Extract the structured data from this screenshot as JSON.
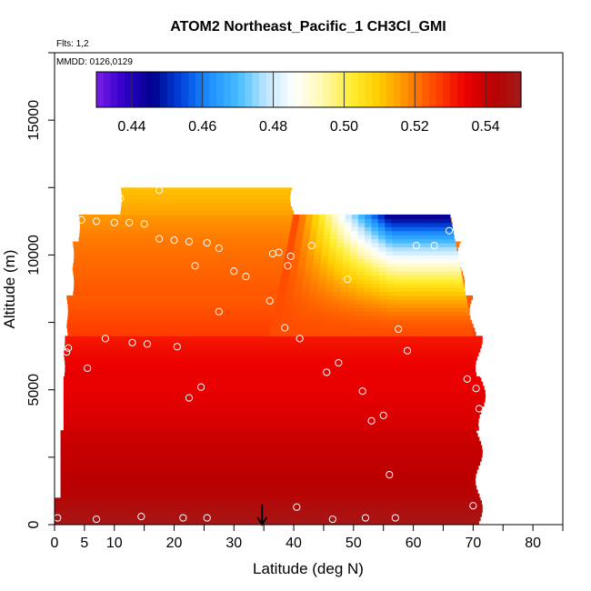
{
  "chart_data": {
    "type": "heatmap",
    "title": "ATOM2 Northeast_Pacific_1 CH3Cl_GMI",
    "annotations": [
      "Flts: 1,2",
      "MMDD: 0126,0129"
    ],
    "xlabel": "Latitude (deg N)",
    "ylabel": "Altitude (m)",
    "xlim": [
      0,
      85
    ],
    "ylim": [
      0,
      17500
    ],
    "x_ticks": [
      0,
      5,
      10,
      20,
      30,
      40,
      50,
      60,
      70,
      80
    ],
    "y_ticks": [
      0,
      5000,
      10000,
      15000
    ],
    "colorbar": {
      "min": 0.43,
      "max": 0.55,
      "ticks": [
        0.44,
        0.46,
        0.48,
        0.5,
        0.52,
        0.54
      ],
      "tick_labels": [
        "0.44",
        "0.46",
        "0.48",
        "0.50",
        "0.52",
        "0.54"
      ],
      "colors": [
        "#7c1ce6",
        "#2d00c8",
        "#00008c",
        "#0044dd",
        "#1e90ff",
        "#44bbff",
        "#bfe6ff",
        "#ffffff",
        "#fff8b0",
        "#ffee33",
        "#ffcc00",
        "#ff8a00",
        "#ff4400",
        "#ee0000",
        "#bb0000",
        "#a01c1c"
      ]
    },
    "bands": [
      {
        "alt": [
          0,
          1000
        ],
        "value": 0.548,
        "lat": [
          0,
          71
        ]
      },
      {
        "alt": [
          1000,
          3500
        ],
        "value": 0.543,
        "lat": [
          1,
          71
        ]
      },
      {
        "alt": [
          3500,
          5500
        ],
        "value": 0.538,
        "lat": [
          1.5,
          71.5
        ]
      },
      {
        "alt": [
          5500,
          7000
        ],
        "value": 0.535,
        "lat": [
          1.5,
          71
        ]
      },
      {
        "alt": [
          7000,
          8500
        ],
        "value": 0.527,
        "lat": [
          2,
          70
        ]
      },
      {
        "alt": [
          8500,
          10500
        ],
        "value": 0.524,
        "lat": [
          3,
          68
        ]
      },
      {
        "alt": [
          10500,
          11500
        ],
        "value": 0.52,
        "lat": [
          4,
          66
        ]
      },
      {
        "alt": [
          11500,
          12500
        ],
        "value": 0.515,
        "lat": [
          11,
          40
        ]
      }
    ],
    "features": [
      {
        "name": "upper-gradient",
        "lat": [
          36,
          70
        ],
        "alt": [
          7000,
          11500
        ],
        "value_low": 0.44,
        "value_high": 0.525
      }
    ],
    "points": [
      [
        0.5,
        250
      ],
      [
        7,
        200
      ],
      [
        14.5,
        300
      ],
      [
        21.5,
        250
      ],
      [
        25.5,
        250
      ],
      [
        40.5,
        650
      ],
      [
        46.5,
        200
      ],
      [
        52,
        250
      ],
      [
        57,
        250
      ],
      [
        70,
        700
      ],
      [
        2,
        6400
      ],
      [
        2.3,
        6550
      ],
      [
        5.5,
        5800
      ],
      [
        8.5,
        6900
      ],
      [
        13,
        6750
      ],
      [
        15.5,
        6700
      ],
      [
        20.5,
        6600
      ],
      [
        22.5,
        4700
      ],
      [
        24.5,
        5100
      ],
      [
        27.5,
        7900
      ],
      [
        36,
        8300
      ],
      [
        38.5,
        7300
      ],
      [
        41,
        6900
      ],
      [
        45.5,
        5650
      ],
      [
        47.5,
        6000
      ],
      [
        51.5,
        4950
      ],
      [
        53,
        3850
      ],
      [
        55,
        4050
      ],
      [
        56,
        1850
      ],
      [
        57.5,
        7250
      ],
      [
        59,
        6450
      ],
      [
        69,
        5400
      ],
      [
        70.5,
        5050
      ],
      [
        71,
        4300
      ],
      [
        3.5,
        11300
      ],
      [
        4.5,
        11300
      ],
      [
        7,
        11250
      ],
      [
        10,
        11200
      ],
      [
        12.5,
        11200
      ],
      [
        15,
        11150
      ],
      [
        11,
        12100
      ],
      [
        17.5,
        12400
      ],
      [
        17.5,
        10600
      ],
      [
        20,
        10550
      ],
      [
        22.5,
        10500
      ],
      [
        25.5,
        10450
      ],
      [
        27.5,
        10250
      ],
      [
        23.5,
        9600
      ],
      [
        30,
        9400
      ],
      [
        32,
        9200
      ],
      [
        36.5,
        10050
      ],
      [
        37.5,
        10100
      ],
      [
        39.5,
        9950
      ],
      [
        39,
        9600
      ],
      [
        43,
        10350
      ],
      [
        49,
        9100
      ],
      [
        60.5,
        10350
      ],
      [
        63.5,
        10350
      ],
      [
        66,
        10900
      ]
    ],
    "marker": {
      "lat": 34.7,
      "alt_from": 750,
      "alt_to": 0
    }
  }
}
